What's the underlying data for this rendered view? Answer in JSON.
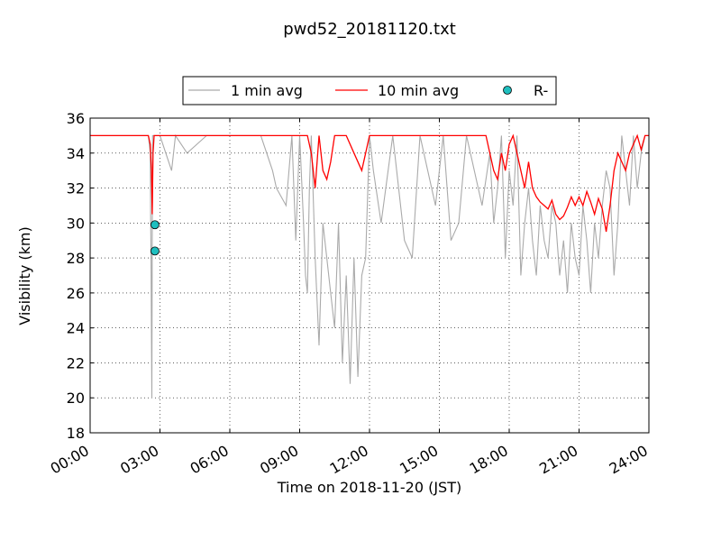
{
  "chart_data": {
    "type": "line",
    "title": "pwd52_20181120.txt",
    "xlabel": "Time on 2018-11-20 (JST)",
    "ylabel": "Visibility (km)",
    "xlim": [
      "00:00",
      "24:00"
    ],
    "ylim": [
      18,
      36
    ],
    "x_ticks": [
      "00:00",
      "03:00",
      "06:00",
      "09:00",
      "12:00",
      "15:00",
      "18:00",
      "21:00",
      "24:00"
    ],
    "y_ticks": [
      "18",
      "20",
      "22",
      "24",
      "26",
      "28",
      "30",
      "32",
      "34",
      "36"
    ],
    "grid": true,
    "legend_position": "top-center",
    "legend": [
      "1 min avg",
      "10 min avg",
      "R-"
    ],
    "colors": {
      "one_min": "#aaaaaa",
      "ten_min": "#ff0000",
      "marker": "#1fbfbf"
    },
    "series": [
      {
        "name": "1 min avg",
        "x": [
          "00:00",
          "02:30",
          "02:35",
          "02:36",
          "02:37",
          "02:38",
          "02:39",
          "02:40",
          "02:41",
          "02:42",
          "02:43",
          "02:45",
          "02:50",
          "03:00",
          "03:30",
          "03:40",
          "04:10",
          "05:00",
          "06:00",
          "06:30",
          "07:20",
          "07:50",
          "08:00",
          "08:25",
          "08:40",
          "08:50",
          "09:00",
          "09:10",
          "09:15",
          "09:20",
          "09:25",
          "09:30",
          "09:40",
          "09:50",
          "10:00",
          "10:10",
          "10:20",
          "10:30",
          "10:40",
          "10:50",
          "11:00",
          "11:10",
          "11:20",
          "11:30",
          "11:40",
          "11:50",
          "12:00",
          "12:10",
          "12:30",
          "13:00",
          "13:30",
          "13:50",
          "14:10",
          "14:30",
          "14:50",
          "15:10",
          "15:30",
          "15:50",
          "16:10",
          "16:30",
          "16:50",
          "17:10",
          "17:20",
          "17:30",
          "17:40",
          "17:50",
          "18:00",
          "18:10",
          "18:20",
          "18:30",
          "18:40",
          "18:50",
          "19:00",
          "19:10",
          "19:20",
          "19:30",
          "19:40",
          "19:50",
          "20:00",
          "20:10",
          "20:20",
          "20:30",
          "20:40",
          "20:50",
          "21:00",
          "21:10",
          "21:20",
          "21:30",
          "21:40",
          "21:50",
          "22:00",
          "22:10",
          "22:20",
          "22:30",
          "22:40",
          "22:50",
          "23:00",
          "23:10",
          "23:20",
          "23:30",
          "23:40",
          "23:50",
          "24:00"
        ],
        "values": [
          35,
          35,
          34,
          30,
          28,
          24,
          20,
          29,
          35,
          35,
          35,
          35,
          35,
          35,
          33,
          35,
          34,
          35,
          35,
          35,
          35,
          33,
          32,
          31,
          35,
          29,
          35,
          30,
          27,
          26,
          32,
          35,
          28,
          23,
          30,
          28,
          26,
          24,
          30,
          22,
          27,
          20.8,
          28,
          21.2,
          27,
          28,
          35,
          33,
          30,
          35,
          29,
          28,
          35,
          33,
          31,
          35,
          29,
          30,
          35,
          33,
          31,
          34,
          30,
          32,
          35,
          28,
          33,
          31,
          35,
          27,
          30,
          32,
          29,
          27,
          31,
          29,
          28,
          31,
          30,
          27,
          29,
          26,
          30,
          28,
          27,
          31,
          29,
          26,
          30,
          28,
          31,
          33,
          32,
          27,
          30,
          35,
          33,
          31,
          35,
          32,
          34,
          35,
          35
        ]
      },
      {
        "name": "10 min avg",
        "x": [
          "00:00",
          "02:30",
          "02:35",
          "02:38",
          "02:40",
          "02:42",
          "02:45",
          "09:20",
          "09:30",
          "09:40",
          "09:50",
          "10:00",
          "10:10",
          "10:20",
          "10:30",
          "11:00",
          "11:20",
          "11:40",
          "11:50",
          "12:00",
          "12:40",
          "13:10",
          "15:00",
          "17:00",
          "17:10",
          "17:20",
          "17:30",
          "17:40",
          "17:50",
          "18:00",
          "18:10",
          "18:20",
          "18:30",
          "18:40",
          "18:50",
          "19:00",
          "19:10",
          "19:20",
          "19:30",
          "19:40",
          "19:50",
          "20:00",
          "20:10",
          "20:20",
          "20:30",
          "20:40",
          "20:50",
          "21:00",
          "21:10",
          "21:20",
          "21:30",
          "21:40",
          "21:50",
          "22:00",
          "22:10",
          "22:20",
          "22:30",
          "22:40",
          "22:50",
          "23:00",
          "23:10",
          "23:20",
          "23:30",
          "23:40",
          "23:50",
          "24:00"
        ],
        "values": [
          35,
          35,
          34.5,
          33,
          30.5,
          34,
          35,
          35,
          34,
          32,
          35,
          33,
          32.5,
          33.5,
          35,
          35,
          34,
          33,
          34,
          35,
          35,
          35,
          35,
          35,
          34,
          33,
          32.5,
          34,
          33,
          34.5,
          35,
          34,
          33,
          32,
          33.5,
          32,
          31.5,
          31.2,
          31,
          30.8,
          31.3,
          30.5,
          30.2,
          30.4,
          30.9,
          31.5,
          31,
          31.5,
          31,
          31.8,
          31.2,
          30.5,
          31.4,
          30.8,
          29.5,
          31,
          33,
          34,
          33.5,
          33,
          34,
          34.5,
          35,
          34.2,
          35,
          35
        ]
      },
      {
        "name": "R-",
        "type": "scatter",
        "x": [
          "02:47",
          "02:47"
        ],
        "values": [
          29.9,
          28.4
        ]
      }
    ]
  }
}
